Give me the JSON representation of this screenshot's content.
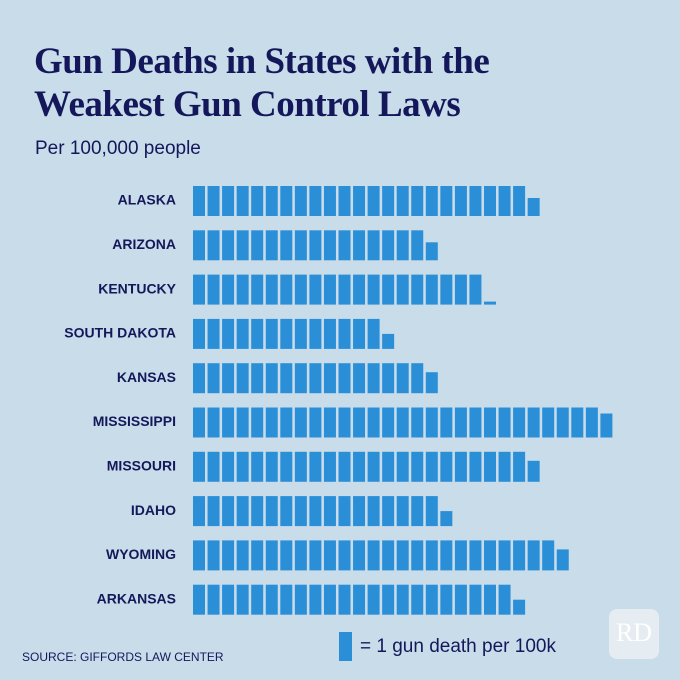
{
  "chart_data": {
    "type": "pictograph",
    "title": [
      "Gun Deaths in States with the",
      "Weakest Gun Control Laws"
    ],
    "subtitle": "Per 100,000 people",
    "categories": [
      "ALASKA",
      "ARIZONA",
      "KENTUCKY",
      "SOUTH DAKOTA",
      "KANSAS",
      "MISSISSIPPI",
      "MISSOURI",
      "IDAHO",
      "WYOMING",
      "ARKANSAS"
    ],
    "values": [
      23.6,
      16.6,
      20.1,
      13.5,
      16.7,
      28.8,
      23.7,
      17.5,
      25.7,
      22.5
    ],
    "color": "#2b8fd8",
    "legend": "= 1 gun death per 100k",
    "source": "SOURCE: GIFFORDS LAW CENTER",
    "logo": "RD"
  }
}
